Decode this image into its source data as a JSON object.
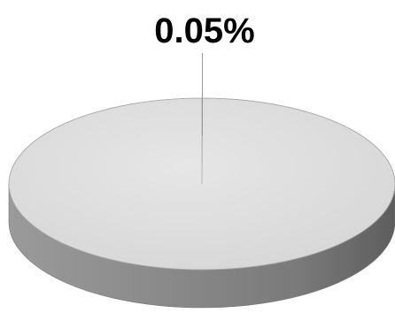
{
  "chart_data": {
    "type": "pie",
    "style": "3d",
    "slices": [
      {
        "label": "0.05%",
        "value": 0.05,
        "color": "#d9d9d9"
      },
      {
        "label": "",
        "value": 99.95,
        "color": "#d9d9d9"
      }
    ],
    "data_labels": [
      "0.05%"
    ],
    "legend": "none"
  }
}
